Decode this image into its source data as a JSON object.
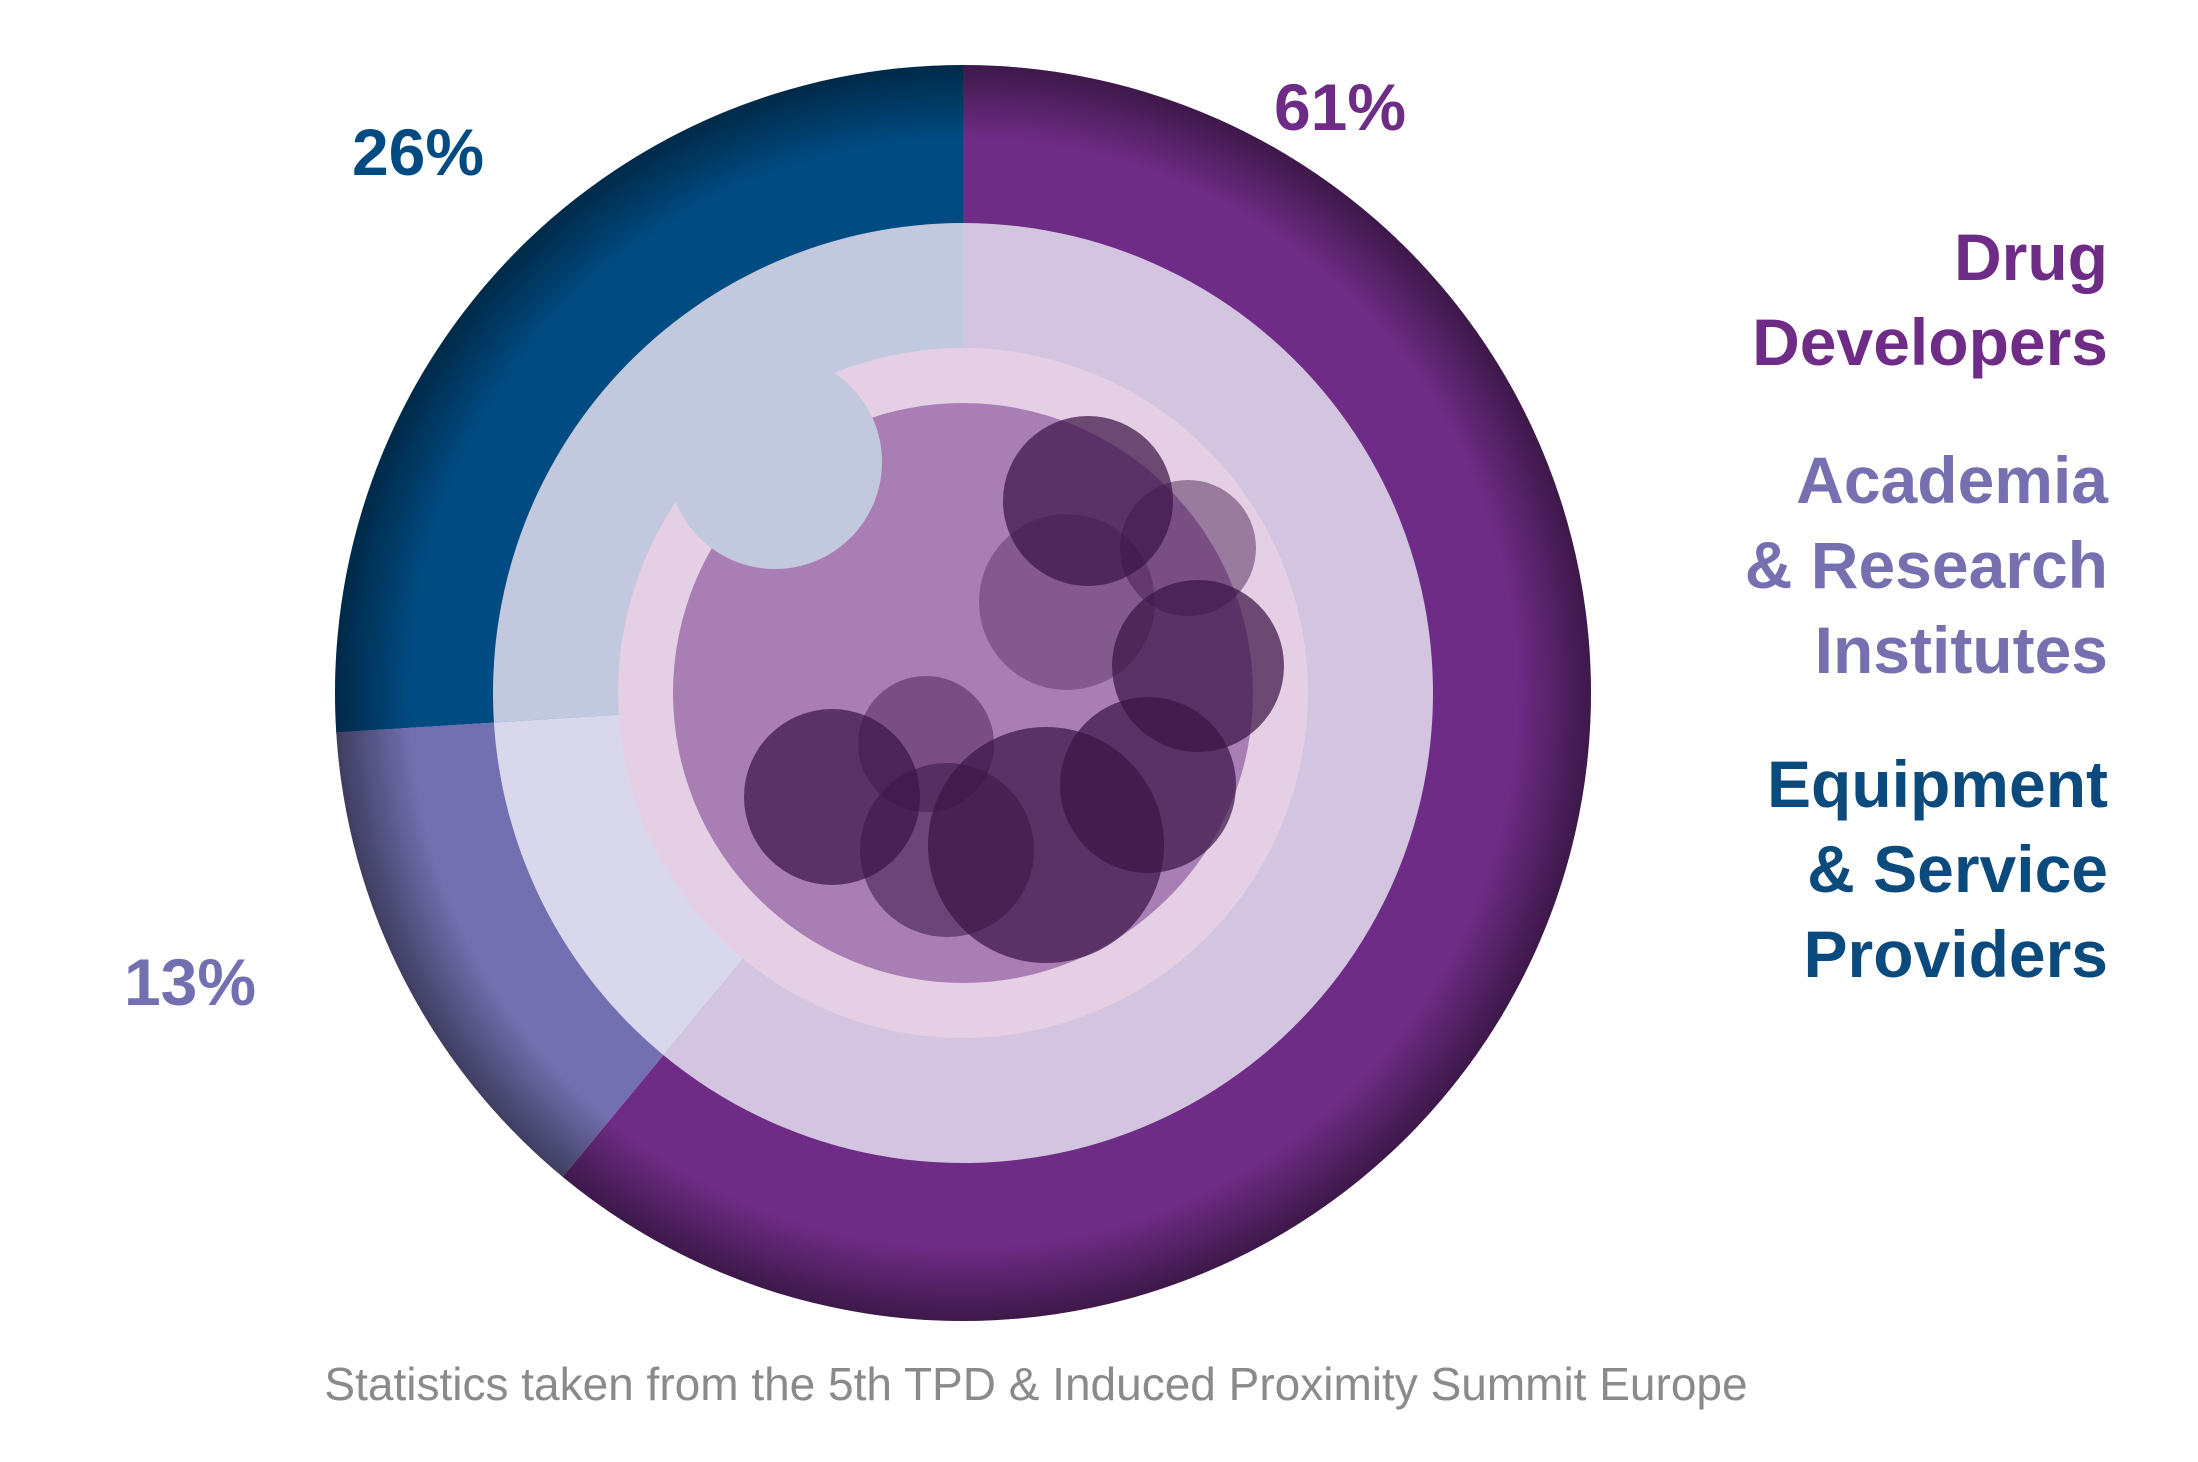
{
  "chart_data": {
    "type": "pie",
    "title": "",
    "categories": [
      "Drug Developers",
      "Academia & Research Institutes",
      "Equipment & Service Providers"
    ],
    "values": [
      61,
      13,
      26
    ],
    "value_labels": [
      "61%",
      "13%",
      "26%"
    ],
    "legend": [
      {
        "lines": [
          "Drug",
          "Developers"
        ],
        "color": "#6f2c86"
      },
      {
        "lines": [
          "Academia",
          "& Research",
          "Institutes"
        ],
        "color": "#7670b0"
      },
      {
        "lines": [
          "Equipment",
          "& Service",
          "Providers"
        ],
        "color": "#0b4a7c"
      }
    ],
    "colors": {
      "drug_developers": "#6f2c86",
      "academia": "#7270b0",
      "equipment": "#004b82",
      "inner_drug": "#d3c4e0",
      "inner_academia": "#d9d7ec",
      "inner_equipment": "#c2c8de",
      "core_ring": "#e5cfe5",
      "core": "#a97eb4",
      "bubble": "#3b1547"
    },
    "legend_placement": "right",
    "source_note": "Statistics taken from the 5th TPD & Induced Proximity Summit Europe"
  }
}
